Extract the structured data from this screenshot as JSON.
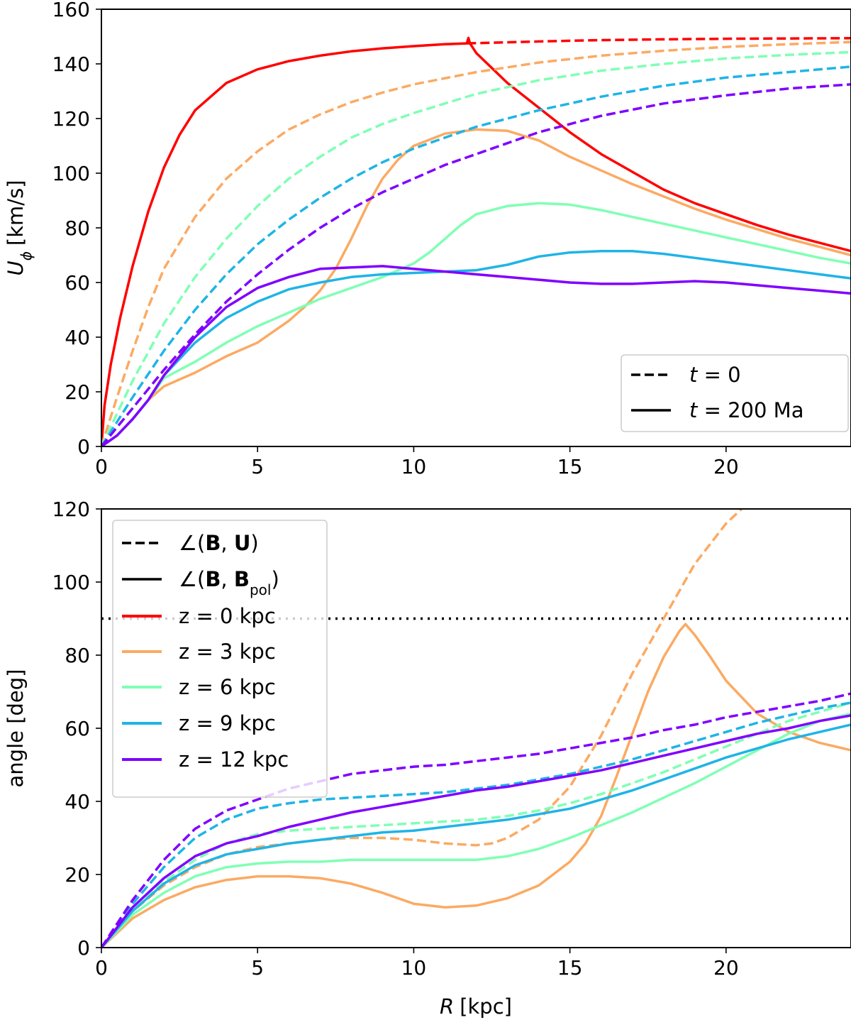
{
  "chart_data": [
    {
      "type": "line",
      "xlabel_var": "R",
      "xlabel_unit": "[kpc]",
      "ylabel_var": "U",
      "ylabel_sub": "ϕ",
      "ylabel_unit": "[km/s]",
      "xlim": [
        0,
        24
      ],
      "ylim": [
        0,
        160
      ],
      "xticks": [
        0,
        5,
        10,
        15,
        20
      ],
      "yticks": [
        0,
        20,
        40,
        60,
        80,
        100,
        120,
        140,
        160
      ],
      "legend_position": "lower-right",
      "legend": [
        {
          "style": "dashed",
          "var": "t",
          "rest": " = 0"
        },
        {
          "style": "solid",
          "var": "t",
          "rest": " = 200 Ma"
        }
      ],
      "grid": false,
      "series": [
        {
          "z": "0 kpc",
          "color": "#ff0000",
          "style": "dashed",
          "x": [
            11.7,
            14,
            16,
            18,
            20,
            22,
            24
          ],
          "y": [
            147.5,
            148.2,
            148.7,
            149.0,
            149.2,
            149.3,
            149.4
          ]
        },
        {
          "z": "0 kpc",
          "color": "#ff0000",
          "style": "solid",
          "x": [
            0,
            0.1,
            0.3,
            0.6,
            1,
            1.5,
            2,
            2.5,
            3,
            4,
            5,
            6,
            7,
            8,
            9,
            10,
            11,
            11.7,
            11.75,
            11.8,
            12,
            13,
            14,
            15,
            16,
            17,
            18,
            19,
            20,
            21,
            22,
            23,
            24
          ],
          "y": [
            0,
            15,
            30,
            47,
            66,
            86,
            102,
            114,
            123,
            133,
            138,
            141,
            143,
            144.6,
            145.7,
            146.5,
            147.2,
            147.5,
            149.5,
            147.5,
            144,
            133,
            124,
            115,
            107,
            100.5,
            94,
            89,
            85,
            81,
            77.5,
            74.5,
            71.5
          ]
        },
        {
          "z": "3 kpc",
          "color": "#fbaa63",
          "style": "dashed",
          "x": [
            0,
            0.5,
            1,
            1.5,
            2,
            3,
            4,
            5,
            6,
            7,
            8,
            9,
            10,
            12,
            14,
            16,
            18,
            20,
            22,
            24
          ],
          "y": [
            0,
            18,
            35,
            51,
            65,
            84,
            98,
            108,
            116,
            121.5,
            126,
            129.5,
            132.5,
            137,
            140.5,
            143,
            144.8,
            146.2,
            147.2,
            148
          ]
        },
        {
          "z": "3 kpc",
          "color": "#fbaa63",
          "style": "solid",
          "x": [
            0,
            0.5,
            1,
            1.5,
            2,
            3,
            4,
            5,
            5.5,
            6,
            6.5,
            7,
            7.5,
            8,
            8.5,
            9,
            9.5,
            10,
            11,
            12,
            13,
            14,
            15,
            16,
            17,
            18,
            19,
            20,
            21,
            22,
            23,
            24
          ],
          "y": [
            0,
            4,
            10,
            17,
            22,
            27,
            33,
            38,
            42,
            46,
            51,
            57,
            65,
            76,
            88,
            98,
            105,
            110,
            114.5,
            116,
            115.5,
            112,
            106,
            101,
            96,
            91.5,
            87,
            83,
            79.5,
            76,
            73,
            70
          ]
        },
        {
          "z": "6 kpc",
          "color": "#80ffb4",
          "style": "dashed",
          "x": [
            0,
            0.5,
            1,
            2,
            3,
            4,
            5,
            6,
            7,
            8,
            9,
            10,
            12,
            14,
            16,
            18,
            20,
            22,
            24
          ],
          "y": [
            0,
            12,
            24,
            45,
            62,
            76,
            88,
            98,
            106,
            113,
            118,
            122,
            129,
            134,
            137.5,
            140,
            142,
            143.3,
            144.3
          ]
        },
        {
          "z": "6 kpc",
          "color": "#80ffb4",
          "style": "solid",
          "x": [
            0,
            0.5,
            1,
            1.5,
            2,
            3,
            4,
            5,
            6,
            7,
            8,
            9,
            10,
            10.5,
            11,
            11.5,
            12,
            13,
            14,
            15,
            16,
            17,
            18,
            19,
            20,
            21,
            22,
            23,
            24
          ],
          "y": [
            0,
            4,
            10,
            17,
            25,
            31,
            38,
            44,
            49,
            54,
            58,
            62,
            67,
            71,
            76,
            81,
            85,
            88,
            89,
            88.5,
            86.5,
            84,
            81.5,
            79,
            76.5,
            74,
            71.5,
            69,
            67
          ]
        },
        {
          "z": "9 kpc",
          "color": "#1fb4e6",
          "style": "dashed",
          "x": [
            0,
            0.5,
            1,
            2,
            3,
            4,
            5,
            6,
            7,
            8,
            9,
            10,
            11,
            12,
            14,
            16,
            18,
            20,
            22,
            24
          ],
          "y": [
            0,
            9,
            18,
            35,
            50,
            63,
            74,
            83,
            91,
            98,
            104,
            109,
            113,
            117,
            123,
            128,
            132,
            135,
            137,
            139
          ]
        },
        {
          "z": "9 kpc",
          "color": "#1fb4e6",
          "style": "solid",
          "x": [
            0,
            0.5,
            1,
            1.5,
            2,
            3,
            4,
            5,
            6,
            7,
            8,
            9,
            10,
            11,
            12,
            13,
            14,
            15,
            16,
            17,
            18,
            19,
            20,
            21,
            22,
            23,
            24
          ],
          "y": [
            0,
            4,
            10,
            17,
            26,
            38,
            47,
            53,
            57.5,
            60,
            62,
            63,
            63.5,
            64,
            64.5,
            66.5,
            69.5,
            71,
            71.5,
            71.5,
            70.5,
            69,
            67.5,
            66,
            64.5,
            63,
            61.5
          ]
        },
        {
          "z": "12 kpc",
          "color": "#8000ff",
          "style": "dashed",
          "x": [
            0,
            0.5,
            1,
            2,
            3,
            4,
            5,
            6,
            7,
            8,
            9,
            10,
            11,
            12,
            13,
            14,
            16,
            18,
            20,
            22,
            24
          ],
          "y": [
            0,
            7,
            14,
            28,
            41,
            53,
            63,
            72,
            80,
            87,
            93,
            98,
            103,
            107,
            111,
            115,
            121,
            125.5,
            128.5,
            131,
            132.5
          ]
        },
        {
          "z": "12 kpc",
          "color": "#8000ff",
          "style": "solid",
          "x": [
            0,
            0.5,
            1,
            1.5,
            2,
            3,
            4,
            5,
            6,
            7,
            8,
            9,
            10,
            11,
            12,
            13,
            14,
            15,
            16,
            17,
            18,
            19,
            20,
            21,
            22,
            23,
            24
          ],
          "y": [
            0,
            4,
            10,
            17,
            26,
            40,
            51,
            58,
            62,
            65,
            65.5,
            66,
            65,
            64,
            63,
            62,
            61,
            60,
            59.5,
            59.5,
            60,
            60.5,
            60,
            59,
            58,
            57,
            56
          ]
        }
      ]
    },
    {
      "type": "line",
      "xlabel_var": "R",
      "xlabel_unit": "[kpc]",
      "ylabel": "angle [deg]",
      "xlim": [
        0,
        24
      ],
      "ylim": [
        0,
        120
      ],
      "xticks": [
        0,
        5,
        10,
        15,
        20
      ],
      "yticks": [
        0,
        20,
        40,
        60,
        80,
        100,
        120
      ],
      "legend_position": "upper-left",
      "legend": [
        {
          "style": "dashed",
          "color": "#000000",
          "pre": "∠(",
          "b1": "B",
          "mid": ", ",
          "b2": "U",
          "sub": "",
          "post": ")"
        },
        {
          "style": "solid",
          "color": "#000000",
          "pre": "∠(",
          "b1": "B",
          "mid": ", ",
          "b2": "B",
          "sub": "pol",
          "post": ")"
        },
        {
          "style": "solid",
          "color": "#ff0000",
          "label": "z = 0 kpc"
        },
        {
          "style": "solid",
          "color": "#fbaa63",
          "label": "z = 3 kpc"
        },
        {
          "style": "solid",
          "color": "#80ffb4",
          "label": "z = 6 kpc"
        },
        {
          "style": "solid",
          "color": "#1fb4e6",
          "label": "z = 9 kpc"
        },
        {
          "style": "solid",
          "color": "#8000ff",
          "label": "z = 12 kpc"
        }
      ],
      "reference_line": {
        "y": 90,
        "style": "dotted",
        "color": "#000000"
      },
      "grid": false,
      "series": [
        {
          "z": "3 kpc",
          "color": "#fbaa63",
          "style": "dashed",
          "x": [
            0,
            0.5,
            1,
            2,
            3,
            4,
            5,
            6,
            7,
            8,
            9,
            10,
            11,
            12,
            12.5,
            13,
            14,
            15,
            16,
            17,
            18,
            19,
            20,
            20.5
          ],
          "y": [
            0,
            5,
            10,
            17,
            22,
            25.5,
            27.5,
            28.5,
            29.5,
            30,
            30,
            29.5,
            28.5,
            28,
            28.5,
            30,
            35,
            44,
            58,
            75,
            90,
            105,
            116,
            120
          ]
        },
        {
          "z": "3 kpc",
          "color": "#fbaa63",
          "style": "solid",
          "x": [
            0,
            0.5,
            1,
            2,
            3,
            4,
            5,
            6,
            7,
            8,
            9,
            10,
            11,
            12,
            13,
            14,
            15,
            15.5,
            16,
            16.5,
            17,
            17.5,
            18,
            18.5,
            18.7,
            19,
            19.5,
            20,
            21,
            22,
            23,
            24
          ],
          "y": [
            0,
            4,
            8,
            13,
            16.5,
            18.5,
            19.5,
            19.5,
            19,
            17.5,
            15,
            12,
            11,
            11.5,
            13.5,
            17,
            23.5,
            28.5,
            36,
            47,
            58.5,
            70,
            79.5,
            86.5,
            88.5,
            85.5,
            79.5,
            73,
            64,
            59,
            56,
            54
          ]
        },
        {
          "z": "6 kpc",
          "color": "#80ffb4",
          "style": "dashed",
          "x": [
            0,
            0.5,
            1,
            2,
            3,
            4,
            5,
            6,
            7,
            8,
            9,
            10,
            11,
            12,
            13,
            14,
            15,
            16,
            17,
            18,
            19,
            20,
            21,
            22,
            23,
            24
          ],
          "y": [
            0,
            5,
            10,
            18,
            24,
            28.5,
            31,
            32,
            32.5,
            33,
            33.5,
            34,
            34.5,
            35,
            36,
            37.5,
            39.5,
            42,
            45,
            48,
            51.5,
            55,
            58.5,
            62,
            64.5,
            67
          ]
        },
        {
          "z": "6 kpc",
          "color": "#80ffb4",
          "style": "solid",
          "x": [
            0,
            0.5,
            1,
            2,
            3,
            4,
            5,
            6,
            7,
            8,
            9,
            10,
            11,
            12,
            13,
            14,
            15,
            16,
            17,
            18,
            19,
            20,
            21,
            22,
            23,
            24
          ],
          "y": [
            0,
            4.5,
            9,
            15,
            19.5,
            22,
            23,
            23.5,
            23.5,
            24,
            24,
            24,
            24,
            24,
            25,
            27,
            30,
            33.5,
            37,
            41,
            45,
            49.5,
            54,
            58.5,
            62,
            64
          ]
        },
        {
          "z": "9 kpc",
          "color": "#1fb4e6",
          "style": "dashed",
          "x": [
            0,
            0.5,
            1,
            2,
            3,
            4,
            5,
            6,
            7,
            8,
            9,
            10,
            11,
            12,
            13,
            14,
            15,
            16,
            17,
            18,
            19,
            20,
            21,
            22,
            23,
            24
          ],
          "y": [
            0,
            6,
            12,
            22,
            30,
            35,
            38,
            39.5,
            40.5,
            41,
            41.5,
            42,
            42.5,
            43.5,
            44.5,
            46,
            47.5,
            49.5,
            51.5,
            54,
            56.5,
            59,
            61.5,
            63.5,
            65.5,
            67
          ]
        },
        {
          "z": "9 kpc",
          "color": "#1fb4e6",
          "style": "solid",
          "x": [
            0,
            0.5,
            1,
            2,
            3,
            4,
            5,
            6,
            7,
            8,
            9,
            10,
            11,
            12,
            13,
            14,
            15,
            16,
            17,
            18,
            19,
            20,
            21,
            22,
            23,
            24
          ],
          "y": [
            0,
            5,
            10,
            17.5,
            22.5,
            25.5,
            27,
            28.5,
            29.5,
            30.5,
            31.5,
            32,
            33,
            34,
            35,
            36.5,
            38,
            40.5,
            43,
            46,
            49,
            52,
            54.5,
            57,
            59,
            61
          ]
        },
        {
          "z": "12 kpc",
          "color": "#8000ff",
          "style": "dashed",
          "x": [
            0,
            0.5,
            1,
            2,
            3,
            4,
            5,
            6,
            7,
            8,
            9,
            10,
            11,
            12,
            13,
            14,
            15,
            16,
            17,
            18,
            19,
            20,
            21,
            22,
            23,
            24
          ],
          "y": [
            0,
            6.5,
            13,
            24,
            32.5,
            37.5,
            40.5,
            43.5,
            45.5,
            47.5,
            48.5,
            49.5,
            50,
            51,
            52,
            53,
            54.5,
            56,
            57.5,
            59.5,
            61,
            63,
            64.5,
            66,
            67.5,
            69.5
          ]
        },
        {
          "z": "12 kpc",
          "color": "#8000ff",
          "style": "solid",
          "x": [
            0,
            0.5,
            1,
            2,
            3,
            4,
            5,
            6,
            7,
            8,
            9,
            10,
            11,
            12,
            13,
            14,
            15,
            16,
            17,
            18,
            19,
            20,
            21,
            22,
            23,
            24
          ],
          "y": [
            0,
            5.5,
            11,
            19,
            25,
            28.5,
            30.5,
            33,
            35,
            37,
            38.5,
            40,
            41.5,
            43,
            44,
            45.5,
            47,
            48.5,
            50.5,
            52.5,
            54.5,
            56.5,
            58.5,
            60,
            62,
            63.5
          ]
        }
      ]
    }
  ]
}
